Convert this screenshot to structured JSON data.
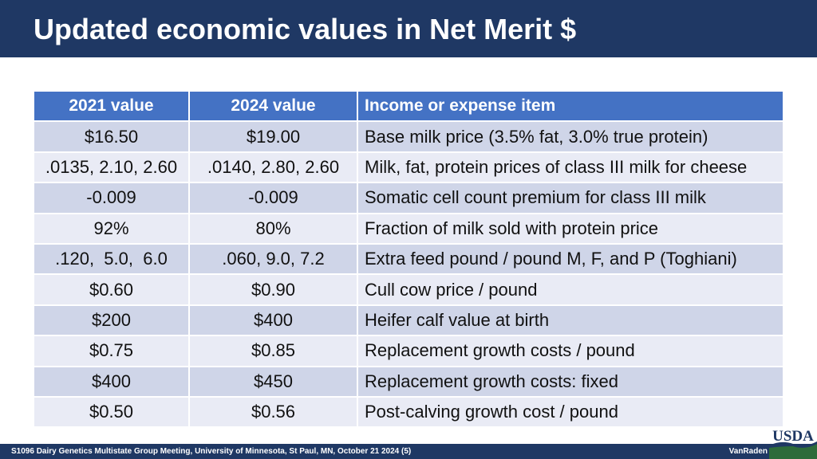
{
  "slide": {
    "title": "Updated economic values in Net Merit $"
  },
  "table": {
    "headers": [
      "2021 value",
      "2024 value",
      "Income or expense item"
    ],
    "rows": [
      [
        "$16.50",
        "$19.00",
        "Base milk price (3.5% fat, 3.0% true protein)"
      ],
      [
        ".0135, 2.10, 2.60",
        ".0140, 2.80, 2.60",
        "Milk, fat, protein prices of class III milk for cheese"
      ],
      [
        "-0.009",
        "-0.009",
        "Somatic cell count premium for class III milk"
      ],
      [
        "92%",
        "80%",
        "Fraction of milk sold with protein price"
      ],
      [
        ".120,  5.0,  6.0",
        ".060, 9.0, 7.2",
        "Extra feed pound / pound M, F, and P (Toghiani)"
      ],
      [
        "$0.60",
        "$0.90",
        "Cull cow price / pound"
      ],
      [
        "$200",
        "$400",
        "Heifer calf value at birth"
      ],
      [
        "$0.75",
        "$0.85",
        "Replacement growth costs / pound"
      ],
      [
        "$400",
        "$450",
        "Replacement growth costs: fixed"
      ],
      [
        "$0.50",
        "$0.56",
        "Post-calving growth cost / pound"
      ]
    ]
  },
  "footer": {
    "text": "S1096 Dairy Genetics Multistate Group Meeting, University of Minnesota, St Paul, MN, October 21 2024 (5)",
    "author": "VanRaden",
    "logo_text": "USDA"
  },
  "colors": {
    "title_bar": "#1f3864",
    "header_row": "#4472c4",
    "row_dark": "#cfd5e8",
    "row_light": "#e9ebf5"
  }
}
